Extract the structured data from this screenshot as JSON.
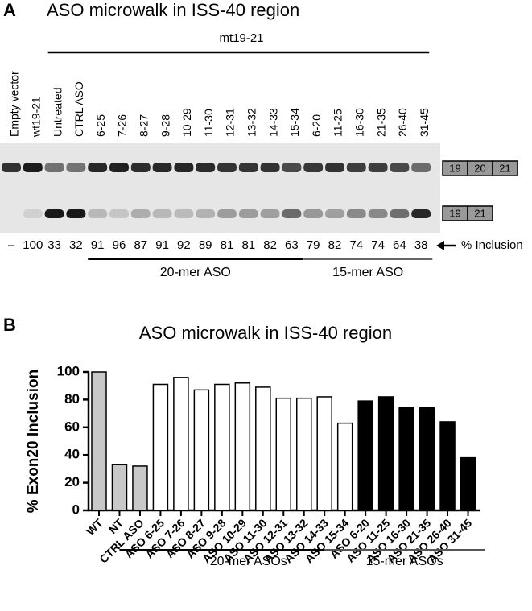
{
  "gel": {
    "panel_label": "A",
    "title": "ASO microwalk in ISS-40 region",
    "construct": "mt19-21",
    "lanes": [
      {
        "label": "Empty vector",
        "inclusion": "–"
      },
      {
        "label": "wt19-21",
        "inclusion": 100
      },
      {
        "label": "Untreated",
        "inclusion": 33
      },
      {
        "label": "CTRL ASO",
        "inclusion": 32
      },
      {
        "label": "6-25",
        "inclusion": 91
      },
      {
        "label": "7-26",
        "inclusion": 96
      },
      {
        "label": "8-27",
        "inclusion": 87
      },
      {
        "label": "9-28",
        "inclusion": 91
      },
      {
        "label": "10-29",
        "inclusion": 92
      },
      {
        "label": "11-30",
        "inclusion": 89
      },
      {
        "label": "12-31",
        "inclusion": 81
      },
      {
        "label": "13-32",
        "inclusion": 81
      },
      {
        "label": "14-33",
        "inclusion": 82
      },
      {
        "label": "15-34",
        "inclusion": 63
      },
      {
        "label": "6-20",
        "inclusion": 79
      },
      {
        "label": "11-25",
        "inclusion": 82
      },
      {
        "label": "16-30",
        "inclusion": 74
      },
      {
        "label": "21-35",
        "inclusion": 74
      },
      {
        "label": "26-40",
        "inclusion": 64
      },
      {
        "label": "31-45",
        "inclusion": 38
      }
    ],
    "included_exons": [
      "19",
      "20",
      "21"
    ],
    "skipped_exons": [
      "19",
      "21"
    ],
    "inclusion_label": "% Inclusion",
    "groups": [
      "20-mer ASO",
      "15-mer ASO"
    ]
  },
  "chart_data": {
    "type": "bar",
    "panel_label": "B",
    "title": "ASO microwalk in ISS-40 region",
    "y_label": "% Exon20 Inclusion",
    "categories": [
      "WT",
      "NT",
      "CTRL ASO",
      "ASO 6-25",
      "ASO 7-26",
      "ASO 8-27",
      "ASO 9-28",
      "ASO 10-29",
      "ASO 11-30",
      "ASO 12-31",
      "ASO 13-32",
      "ASO 14-33",
      "ASO 15-34",
      "ASO 6-20",
      "ASO 11-25",
      "ASO 16-30",
      "ASO 21-35",
      "ASO 26-40",
      "ASO 31-45"
    ],
    "values": [
      100,
      33,
      32,
      91,
      96,
      87,
      91,
      92,
      89,
      81,
      81,
      82,
      63,
      79,
      82,
      74,
      74,
      64,
      38
    ],
    "colors": [
      "#c8c8c8",
      "#c8c8c8",
      "#c8c8c8",
      "#ffffff",
      "#ffffff",
      "#ffffff",
      "#ffffff",
      "#ffffff",
      "#ffffff",
      "#ffffff",
      "#ffffff",
      "#ffffff",
      "#ffffff",
      "#000000",
      "#000000",
      "#000000",
      "#000000",
      "#000000",
      "#000000"
    ],
    "groups": [
      {
        "label": "20-mer ASOs",
        "color": "#ffffff"
      },
      {
        "label": "15-mer ASOs",
        "color": "#000000"
      }
    ],
    "ylim": [
      0,
      100
    ],
    "yticks": [
      0,
      20,
      40,
      60,
      80,
      100
    ]
  }
}
